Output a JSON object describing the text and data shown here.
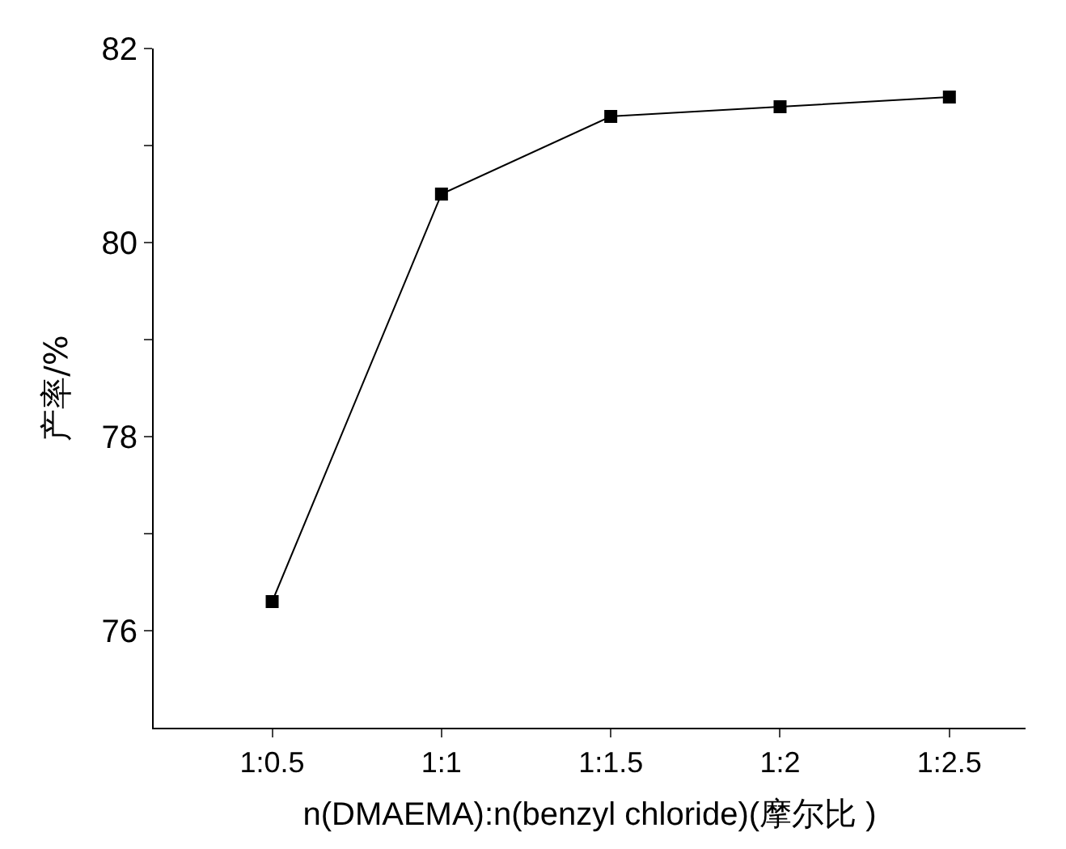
{
  "chart_data": {
    "type": "line",
    "xlabel": "n(DMAEMA):n(benzyl chloride)(摩尔比 )",
    "ylabel": "产率/%",
    "categories": [
      "1:0.5",
      "1:1",
      "1:1.5",
      "1:2",
      "1:2.5"
    ],
    "series": [
      {
        "color": "#000000",
        "values": [
          76.3,
          80.5,
          81.3,
          81.4,
          81.5
        ]
      }
    ],
    "ylim": [
      75,
      82
    ],
    "yticks": [
      76,
      {
        "value": 77,
        "label": null
      },
      78,
      {
        "value": 79,
        "label": null
      },
      80,
      {
        "value": 81,
        "label": null
      },
      82
    ],
    "marker": "square",
    "line_style": "solid",
    "grid": false,
    "legend": false
  }
}
